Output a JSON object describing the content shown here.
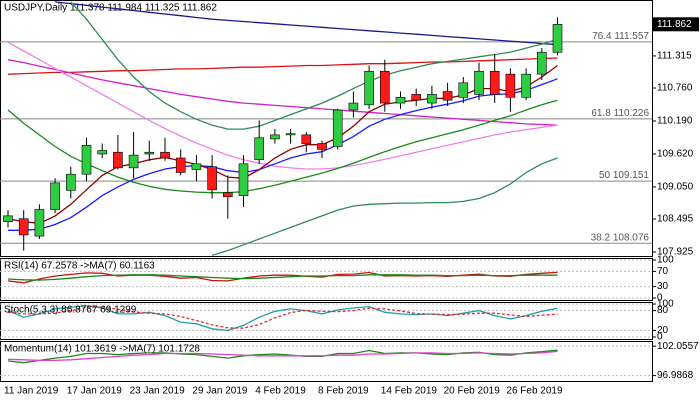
{
  "chart_data": {
    "type": "candlestick",
    "title": "USDJPY,Daily 111.378 111.984 111.325 111.862",
    "categories": [
      "11 Jan 2019",
      null,
      null,
      null,
      "17 Jan 2019",
      null,
      null,
      null,
      "23 Jan 2019",
      null,
      null,
      null,
      "29 Jan 2019",
      null,
      null,
      null,
      "4 Feb 2019",
      null,
      null,
      null,
      "8 Feb 2019",
      null,
      null,
      null,
      "14 Feb 2019",
      null,
      null,
      null,
      "20 Feb 2019",
      null,
      null,
      null,
      "26 Feb 2019",
      null,
      null,
      null
    ],
    "open": [
      108.45,
      108.5,
      108.2,
      108.66,
      108.99,
      109.27,
      109.62,
      109.65,
      109.38,
      109.62,
      109.65,
      109.55,
      109.35,
      109.4,
      108.95,
      108.9,
      109.52,
      109.88,
      109.95,
      109.95,
      109.8,
      109.75,
      110.38,
      110.47,
      111.05,
      110.5,
      110.65,
      110.5,
      110.7,
      110.6,
      110.65,
      111.05,
      111.0,
      110.6,
      111.0,
      111.378
    ],
    "high": [
      108.65,
      108.65,
      108.75,
      109.2,
      109.4,
      109.9,
      109.8,
      109.95,
      110.0,
      109.85,
      109.9,
      109.7,
      109.6,
      109.6,
      109.25,
      109.6,
      110.2,
      110.05,
      110.05,
      110.0,
      109.85,
      110.4,
      110.7,
      111.15,
      111.25,
      110.7,
      110.75,
      110.8,
      110.85,
      110.95,
      111.2,
      111.35,
      111.1,
      111.1,
      111.45,
      111.984
    ],
    "low": [
      108.35,
      107.95,
      108.15,
      108.6,
      108.85,
      109.15,
      109.55,
      109.35,
      109.2,
      109.5,
      109.5,
      109.25,
      109.15,
      108.85,
      108.5,
      108.7,
      109.45,
      109.8,
      109.8,
      109.65,
      109.55,
      109.7,
      110.25,
      110.4,
      110.35,
      110.4,
      110.45,
      110.4,
      110.45,
      110.5,
      110.55,
      110.5,
      110.35,
      110.55,
      110.9,
      111.325
    ],
    "close": [
      108.55,
      108.22,
      108.66,
      109.12,
      109.27,
      109.77,
      109.68,
      109.38,
      109.6,
      109.65,
      109.55,
      109.3,
      109.45,
      109.0,
      108.88,
      109.45,
      109.9,
      109.95,
      109.97,
      109.8,
      109.7,
      110.38,
      110.5,
      111.05,
      110.5,
      110.6,
      110.55,
      110.65,
      110.55,
      110.85,
      111.05,
      110.65,
      110.6,
      111.0,
      111.38,
      111.862
    ],
    "up_color": "#2ecc40",
    "down_color": "#ff1a1a",
    "ylim": [
      107.856,
      112.282
    ],
    "yticks": [
      111.315,
      {
        "value": 110.76,
        "label": "110.760"
      },
      {
        "value": 110.19,
        "label": "110.190"
      },
      {
        "value": 109.62,
        "label": "109.620"
      },
      {
        "value": 109.05,
        "label": "109.050"
      },
      108.495,
      107.925
    ],
    "levels": [
      {
        "ratio": 76.4,
        "price": 111.557
      },
      {
        "ratio": 61.8,
        "price": 110.226
      },
      {
        "ratio": 50.0,
        "price": 109.151
      },
      {
        "ratio": 38.2,
        "price": 108.076
      }
    ],
    "overlays": [
      {
        "color": "#1a1a8c",
        "values": [
          null,
          null,
          null,
          112.25,
          112.22,
          112.19,
          112.16,
          112.13,
          112.1,
          112.07,
          112.04,
          112.01,
          111.98,
          111.95,
          111.93,
          111.91,
          111.89,
          111.87,
          111.85,
          111.83,
          111.81,
          111.79,
          111.77,
          111.75,
          111.73,
          111.71,
          111.69,
          111.67,
          111.65,
          111.63,
          111.61,
          111.59,
          111.57,
          111.55,
          111.53,
          111.51
        ]
      },
      {
        "color": "#e01010",
        "values": [
          111.0,
          111.01,
          111.02,
          111.03,
          111.03,
          111.04,
          111.05,
          111.06,
          111.06,
          111.07,
          111.08,
          111.09,
          111.09,
          111.1,
          111.11,
          111.12,
          111.12,
          111.13,
          111.14,
          111.15,
          111.15,
          111.16,
          111.17,
          111.18,
          111.18,
          111.19,
          111.2,
          111.21,
          111.21,
          111.22,
          111.23,
          111.24,
          111.25,
          111.26,
          111.27,
          111.28
        ]
      },
      {
        "color": "#d020c8",
        "values": [
          111.25,
          111.2,
          111.14,
          111.08,
          111.02,
          110.96,
          110.9,
          110.85,
          110.8,
          110.75,
          110.7,
          110.65,
          110.61,
          110.57,
          110.53,
          110.5,
          110.48,
          110.46,
          110.44,
          110.42,
          110.4,
          110.38,
          110.36,
          110.34,
          110.32,
          110.3,
          110.28,
          110.26,
          110.24,
          110.22,
          110.2,
          110.18,
          110.16,
          110.14,
          110.13,
          110.12
        ]
      },
      {
        "color": "#f080e8",
        "values": [
          111.55,
          111.4,
          111.25,
          111.1,
          110.95,
          110.8,
          110.65,
          110.5,
          110.35,
          110.2,
          110.06,
          109.93,
          109.81,
          109.7,
          109.6,
          109.52,
          109.46,
          109.41,
          109.38,
          109.36,
          109.36,
          109.38,
          109.42,
          109.47,
          109.53,
          109.59,
          109.65,
          109.71,
          109.77,
          109.83,
          109.89,
          109.95,
          110.0,
          110.04,
          110.08,
          110.12
        ]
      },
      {
        "color": "#2e8b57",
        "values": [
          null,
          null,
          null,
          null,
          112.25,
          111.95,
          111.6,
          111.25,
          110.95,
          110.7,
          110.5,
          110.35,
          110.22,
          110.12,
          110.05,
          110.05,
          110.1,
          110.2,
          110.3,
          110.4,
          110.5,
          110.62,
          110.75,
          110.88,
          110.98,
          111.06,
          111.12,
          111.18,
          111.22,
          111.26,
          111.3,
          111.34,
          111.38,
          111.45,
          111.52,
          111.6
        ]
      },
      {
        "color": "#2e8b57",
        "values": [
          null,
          null,
          null,
          null,
          null,
          null,
          null,
          null,
          null,
          null,
          null,
          null,
          null,
          107.87,
          107.95,
          108.05,
          108.15,
          108.25,
          108.35,
          108.45,
          108.55,
          108.65,
          108.72,
          108.75,
          108.76,
          108.77,
          108.77,
          108.78,
          108.78,
          108.8,
          108.85,
          108.95,
          109.1,
          109.3,
          109.45,
          109.55
        ]
      },
      {
        "color": "#1a8a1a",
        "values": [
          110.38,
          110.15,
          109.95,
          109.75,
          109.58,
          109.45,
          109.33,
          109.22,
          109.13,
          109.06,
          109.01,
          108.98,
          108.96,
          108.95,
          108.95,
          108.97,
          109.02,
          109.08,
          109.15,
          109.22,
          109.29,
          109.37,
          109.46,
          109.56,
          109.66,
          109.75,
          109.83,
          109.9,
          109.97,
          110.04,
          110.12,
          110.2,
          110.28,
          110.38,
          110.47,
          110.55
        ]
      },
      {
        "color": "#1a1aff",
        "values": [
          108.3,
          108.3,
          108.32,
          108.4,
          108.52,
          108.7,
          108.9,
          109.05,
          109.18,
          109.28,
          109.36,
          109.4,
          109.42,
          109.4,
          109.33,
          109.3,
          109.35,
          109.45,
          109.55,
          109.62,
          109.66,
          109.78,
          109.92,
          110.1,
          110.22,
          110.3,
          110.37,
          110.43,
          110.48,
          110.54,
          110.62,
          110.65,
          110.66,
          110.72,
          110.82,
          110.92
        ]
      },
      {
        "color": "#8b0000",
        "values": [
          108.5,
          108.45,
          108.42,
          108.55,
          108.75,
          109.0,
          109.25,
          109.4,
          109.45,
          109.52,
          109.56,
          109.5,
          109.44,
          109.35,
          109.22,
          109.2,
          109.35,
          109.55,
          109.7,
          109.78,
          109.78,
          109.9,
          110.1,
          110.35,
          110.48,
          110.52,
          110.55,
          110.58,
          110.58,
          110.64,
          110.75,
          110.75,
          110.7,
          110.78,
          110.95,
          111.15
        ]
      }
    ],
    "indicators": [
      {
        "type": "line",
        "title": "RSI(14) 67.2578 ->MA(7) 60.1163",
        "ylim": [
          0,
          100
        ],
        "yticks": [
          100,
          70,
          30,
          0
        ],
        "series": [
          {
            "color": "#d01010",
            "values": [
              45,
              40,
              50,
              58,
              62,
              66,
              65,
              58,
              60,
              60,
              57,
              52,
              54,
              46,
              45,
              52,
              58,
              60,
              60,
              57,
              55,
              62,
              63,
              67,
              58,
              59,
              58,
              59,
              57,
              60,
              63,
              58,
              57,
              62,
              65,
              67.2578
            ]
          },
          {
            "color": "#1a8a1a",
            "values": [
              50,
              48,
              47,
              49,
              52,
              56,
              59,
              60,
              61,
              61,
              60,
              58,
              56,
              54,
              52,
              51,
              52,
              54,
              56,
              58,
              58,
              59,
              59,
              61,
              61,
              61,
              60,
              60,
              59,
              59,
              60,
              59,
              59,
              60,
              60,
              60.1163
            ]
          }
        ]
      },
      {
        "type": "line",
        "title": "Stoch(5,3,3) 86.8767 69.1299",
        "ylim": [
          0,
          100
        ],
        "yticks": [
          100,
          80,
          20,
          0
        ],
        "series": [
          {
            "color": "#20a0b0",
            "values": [
              80,
              60,
              70,
              85,
              90,
              95,
              88,
              70,
              70,
              75,
              65,
              45,
              40,
              25,
              20,
              35,
              60,
              78,
              85,
              80,
              70,
              82,
              88,
              92,
              75,
              70,
              68,
              70,
              65,
              72,
              80,
              65,
              55,
              65,
              78,
              86.8767
            ]
          },
          {
            "color": "#e03030",
            "values": [
              75,
              70,
              70,
              72,
              80,
              90,
              91,
              84,
              76,
              72,
              70,
              62,
              50,
              37,
              28,
              27,
              38,
              58,
              74,
              81,
              78,
              77,
              80,
              87,
              85,
              79,
              71,
              69,
              68,
              69,
              72,
              72,
              67,
              62,
              66,
              69.1299
            ],
            "dashed": true
          }
        ]
      },
      {
        "type": "line",
        "title": "Momentum(14) 101.3619 ->MA(7) 101.1728",
        "ylim": [
          96.4,
          102.6
        ],
        "yticks": [
          102.0557,
          96.9868
        ],
        "series": [
          {
            "color": "#1a8a1a",
            "values": [
              99.5,
              99.2,
              99.6,
              100.0,
              100.3,
              100.8,
              100.8,
              100.6,
              100.8,
              100.9,
              100.9,
              100.7,
              100.6,
              100.3,
              100.0,
              100.4,
              100.6,
              100.7,
              100.5,
              100.3,
              100.3,
              100.8,
              100.8,
              101.3,
              100.8,
              100.9,
              100.9,
              100.7,
              100.6,
              100.9,
              101.0,
              100.6,
              100.5,
              100.9,
              101.1,
              101.3619
            ]
          },
          {
            "color": "#e040d0",
            "values": [
              99.8,
              99.7,
              99.6,
              99.6,
              99.7,
              99.9,
              100.1,
              100.3,
              100.5,
              100.6,
              100.8,
              100.8,
              100.8,
              100.7,
              100.6,
              100.5,
              100.4,
              100.4,
              100.4,
              100.4,
              100.4,
              100.5,
              100.5,
              100.7,
              100.7,
              100.8,
              100.9,
              100.9,
              100.8,
              100.8,
              100.9,
              100.8,
              100.7,
              100.8,
              100.9,
              101.1728
            ]
          }
        ]
      }
    ]
  }
}
